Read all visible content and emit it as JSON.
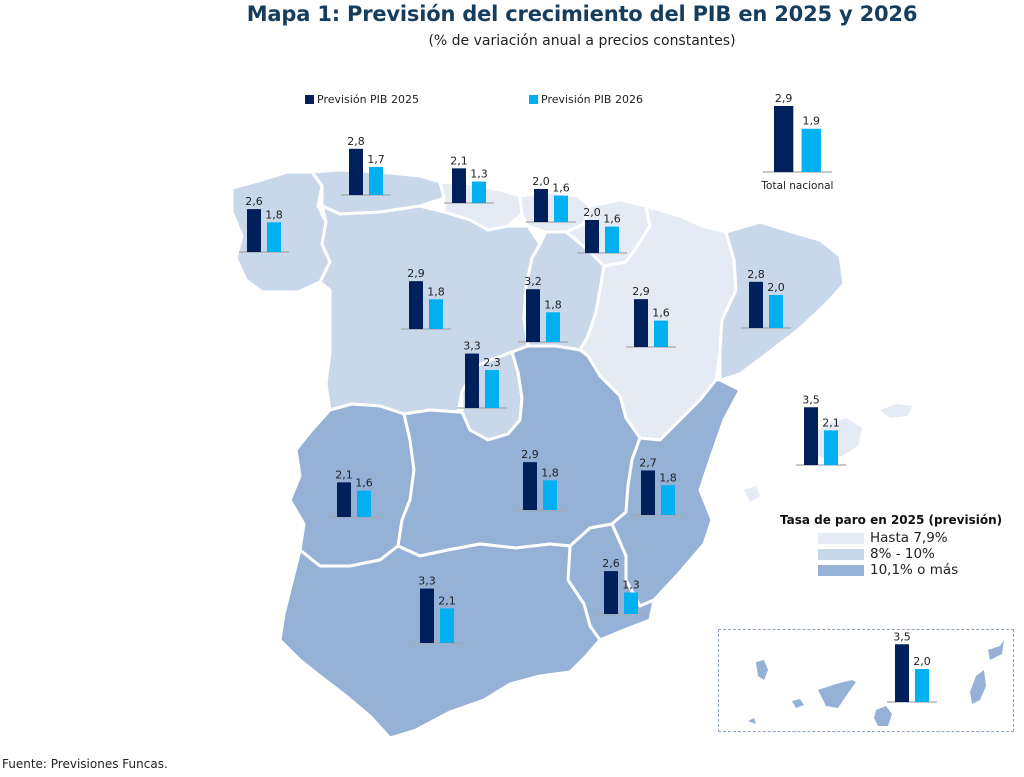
{
  "title": "Mapa 1: Previsión del crecimiento del PIB en 2025 y 2026",
  "subtitle": "(% de variación anual a precios constantes)",
  "footer": "Fuente: Previsiones Funcas.",
  "colors": {
    "pib2025": "#00205b",
    "pib2026": "#00b0f0",
    "paro_low": "#e4ebf5",
    "paro_mid": "#c9d7ea",
    "paro_high": "#95b1d6",
    "baseline": "#a6a6a6",
    "title": "#173d5e"
  },
  "chart_data": {
    "type": "bar",
    "title": "Mapa 1: Previsión del crecimiento del PIB en 2025 y 2026",
    "subtitle": "(% de variación anual a precios constantes)",
    "series_names": [
      "Previsión PIB 2025",
      "Previsión PIB 2026"
    ],
    "legend_position": "top",
    "categories": [
      "Total nacional",
      "Galicia",
      "Asturias",
      "Cantabria",
      "País Vasco",
      "Navarra",
      "Castilla y León",
      "La Rioja",
      "Aragón",
      "Cataluña",
      "Madrid",
      "Extremadura",
      "Castilla-La Mancha",
      "C. Valenciana",
      "Murcia",
      "Andalucía",
      "Baleares",
      "Canarias"
    ],
    "series": [
      {
        "name": "Previsión PIB 2025",
        "values": [
          2.9,
          2.6,
          2.8,
          2.1,
          2.0,
          2.0,
          2.9,
          3.2,
          2.9,
          2.8,
          3.3,
          2.1,
          2.9,
          2.7,
          2.6,
          3.3,
          3.5,
          3.5
        ]
      },
      {
        "name": "Previsión PIB 2026",
        "values": [
          1.9,
          1.8,
          1.7,
          1.3,
          1.6,
          1.6,
          1.8,
          1.8,
          1.6,
          2.0,
          2.3,
          1.6,
          1.8,
          1.8,
          1.3,
          2.1,
          2.1,
          2.0
        ]
      }
    ],
    "value_labels": {
      "2025": [
        "2,9",
        "2,6",
        "2,8",
        "2,1",
        "2,0",
        "2,0",
        "2,9",
        "3,2",
        "2,9",
        "2,8",
        "3,3",
        "2,1",
        "2,9",
        "2,7",
        "2,6",
        "3,3",
        "3,5",
        "3,5"
      ],
      "2026": [
        "1,9",
        "1,8",
        "1,7",
        "1,3",
        "1,6",
        "1,6",
        "1,8",
        "1,8",
        "1,6",
        "2,0",
        "2,3",
        "1,6",
        "1,8",
        "1,8",
        "1,3",
        "2,1",
        "2,1",
        "2,0"
      ]
    },
    "total_label": "Total nacional",
    "choropleth": {
      "title": "Tasa de paro en 2025 (previsión)",
      "classes": [
        "Hasta 7,9%",
        "8% - 10%",
        "10,1% o más"
      ],
      "region_class": {
        "Galicia": "8% - 10%",
        "Asturias": "8% - 10%",
        "Cantabria": "Hasta 7,9%",
        "País Vasco": "Hasta 7,9%",
        "Navarra": "Hasta 7,9%",
        "Castilla y León": "8% - 10%",
        "La Rioja": "8% - 10%",
        "Aragón": "Hasta 7,9%",
        "Cataluña": "8% - 10%",
        "Madrid": "8% - 10%",
        "Extremadura": "10,1% o más",
        "Castilla-La Mancha": "10,1% o más",
        "C. Valenciana": "10,1% o más",
        "Murcia": "10,1% o más",
        "Andalucía": "10,1% o más",
        "Baleares": "Hasta 7,9%",
        "Canarias": "10,1% o más"
      }
    }
  },
  "legend": {
    "pib2025": "Previsión PIB 2025",
    "pib2026": "Previsión PIB 2026"
  },
  "paro_legend": {
    "title": "Tasa de paro en 2025 (previsión)",
    "items": [
      "Hasta 7,9%",
      "8% - 10%",
      "10,1% o más"
    ]
  }
}
